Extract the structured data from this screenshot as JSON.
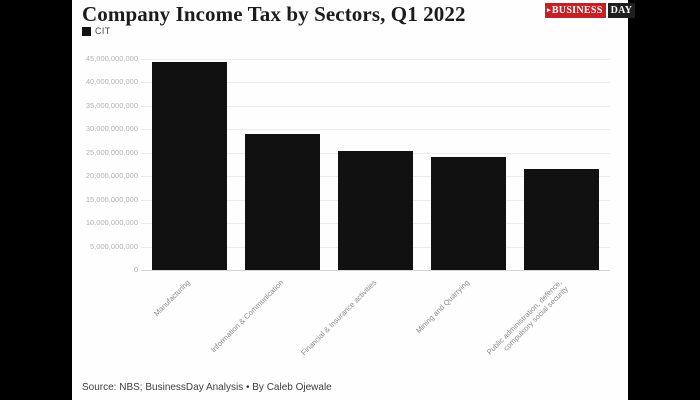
{
  "page": {
    "title": "Company Income Tax by Sectors, Q1 2022",
    "source_line": "Source: NBS; BusinessDay Analysis • By Caleb Ojewale"
  },
  "logo": {
    "arrow": "▸",
    "part1": "BUSINESS",
    "part2": "DAY",
    "red": "#c42127",
    "dark": "#1f1f1f"
  },
  "legend": {
    "label": "CIT",
    "swatch_color": "#111111"
  },
  "chart_data": {
    "type": "bar",
    "title": "Company Income Tax by Sectors, Q1 2022",
    "series_name": "CIT",
    "categories": [
      "Manufacturing",
      "Information & Communication",
      "Financial & Insurance activities",
      "Mining and Quarrying",
      "Public administration, defence, compulsory social security"
    ],
    "category_lines": [
      [
        "Manufacturing"
      ],
      [
        "Information & Communication"
      ],
      [
        "Financial & Insurance activities"
      ],
      [
        "Mining and Quarrying"
      ],
      [
        "Public administration, defence,",
        "compulsory social security"
      ]
    ],
    "values": [
      44400000000,
      29000000000,
      25300000000,
      24200000000,
      21500000000
    ],
    "xlabel": "",
    "ylabel": "",
    "ylim": [
      0,
      45000000000
    ],
    "ytick_step": 5000000000,
    "ytick_labels": [
      "0",
      "5,000,000,000",
      "10,000,000,000",
      "15,000,000,000",
      "20,000,000,000",
      "25,000,000,000",
      "30,000,000,000",
      "35,000,000,000",
      "40,000,000,000",
      "45,000,000,000"
    ],
    "bar_color": "#111111",
    "grid": true,
    "legend_position": "top-left"
  }
}
